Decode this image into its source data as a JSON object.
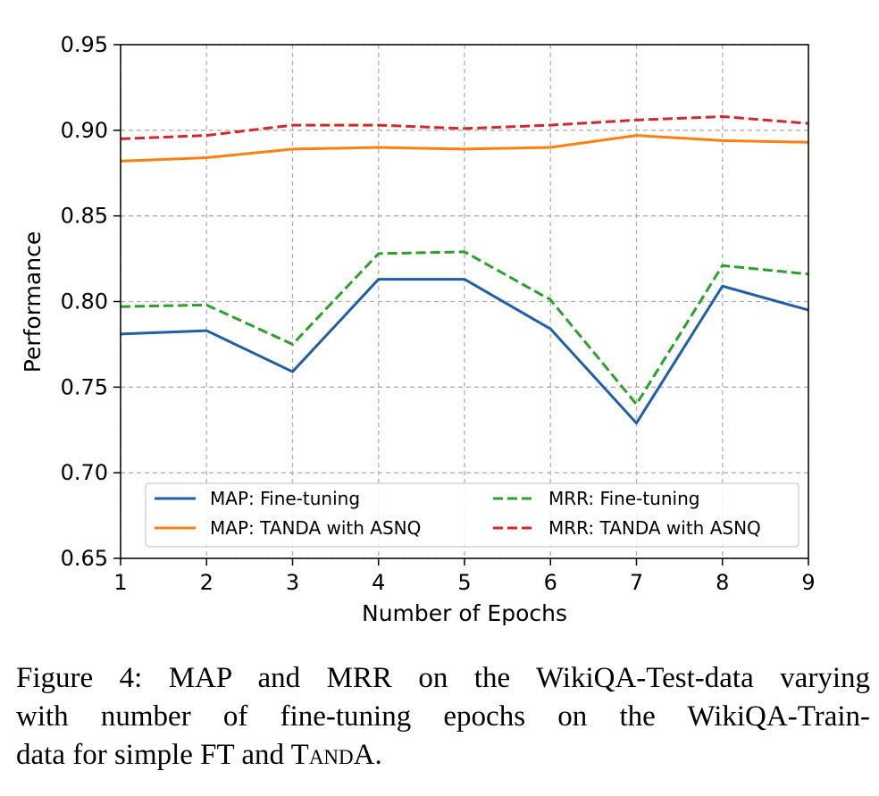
{
  "chart_data": {
    "type": "line",
    "xlabel": "Number of Epochs",
    "ylabel": "Performance",
    "xlim": [
      1,
      9
    ],
    "ylim": [
      0.65,
      0.95
    ],
    "x_ticks": [
      "1",
      "2",
      "3",
      "4",
      "5",
      "6",
      "7",
      "8",
      "9"
    ],
    "y_ticks": [
      "0.65",
      "0.70",
      "0.75",
      "0.80",
      "0.85",
      "0.90",
      "0.95"
    ],
    "grid": true,
    "legend_position": "lower-center",
    "x": [
      1,
      2,
      3,
      4,
      5,
      6,
      7,
      8,
      9
    ],
    "series": [
      {
        "name": "MAP: Fine-tuning",
        "color": "#1f5fa6",
        "dash": "solid",
        "values": [
          0.781,
          0.783,
          0.759,
          0.813,
          0.813,
          0.784,
          0.729,
          0.809,
          0.795
        ]
      },
      {
        "name": "MAP: TANDA with ASNQ",
        "color": "#ff7f0e",
        "dash": "solid",
        "values": [
          0.882,
          0.884,
          0.889,
          0.89,
          0.889,
          0.89,
          0.897,
          0.894,
          0.893
        ]
      },
      {
        "name": "MRR: Fine-tuning",
        "color": "#2ca02c",
        "dash": "dashed",
        "values": [
          0.797,
          0.798,
          0.775,
          0.828,
          0.829,
          0.801,
          0.74,
          0.821,
          0.816
        ]
      },
      {
        "name": "MRR: TANDA with ASNQ",
        "color": "#d62728",
        "dash": "dashed",
        "values": [
          0.895,
          0.897,
          0.903,
          0.903,
          0.901,
          0.903,
          0.906,
          0.908,
          0.904
        ]
      }
    ]
  },
  "caption": {
    "line1": "Figure 4: MAP and MRR on the WikiQA-Test-data varying",
    "line2": "with number of fine-tuning epochs on the WikiQA-Train-",
    "line3_pre": "data for simple FT and T",
    "line3_sc": "and",
    "line3_post": "A."
  }
}
